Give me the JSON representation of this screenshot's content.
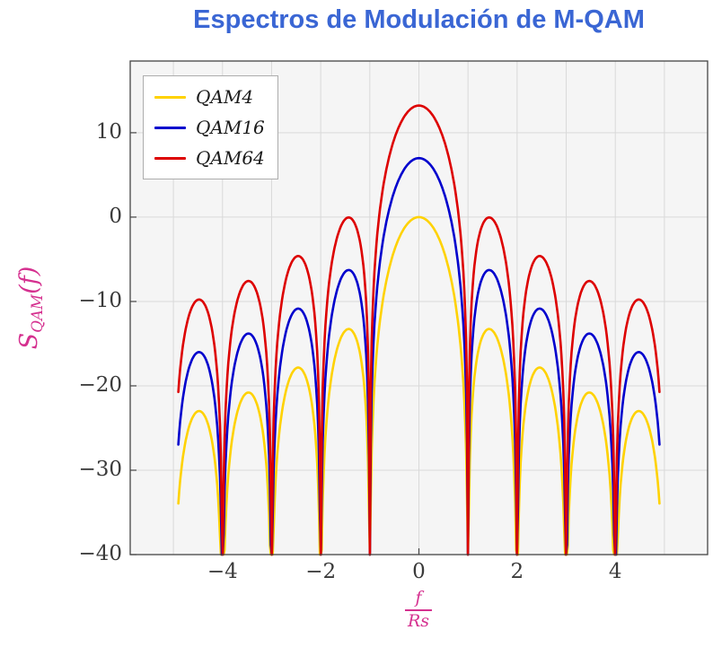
{
  "style": {
    "title_color": "#3A66D4",
    "label_color": "#D5308F",
    "axis_color": "#444444",
    "grid_color": "#D9D9D9",
    "plot_bg": "#F5F5F5",
    "tick_color": "#3A3A3A"
  },
  "labels": {
    "ylabel_base": "S",
    "ylabel_sub": "QAM",
    "ylabel_paren": "(f)",
    "xlabel_num": "f",
    "xlabel_den": "Rs"
  },
  "chart_data": {
    "type": "line",
    "title": "Espectros de Modulación de M-QAM",
    "xlabel": "f/Rs",
    "ylabel": "S_QAM(f)",
    "xlim": [
      -5.88,
      5.88
    ],
    "ylim": [
      -40,
      18.5
    ],
    "x_ticks": [
      -4,
      -2,
      0,
      2,
      4
    ],
    "x_tick_labels": [
      "−4",
      "−2",
      "0",
      "2",
      "4"
    ],
    "y_ticks": [
      10,
      0,
      -10,
      -20,
      -30,
      -40
    ],
    "y_tick_labels": [
      "10",
      "0",
      "−10",
      "−20",
      "−30",
      "−40"
    ],
    "grid": true,
    "grid_x_step": 1,
    "grid_y_step": 10,
    "legend_position": "top-left",
    "x_range": [
      -4.9,
      4.9
    ],
    "clip_floor_db": -40,
    "function": "S_M(f) = offset_db(M) + 20*log10(|sinc(f/Rs)|); sinc nulls at integer f/Rs; curves clipped at -40 dB",
    "nulls_at": [
      -4,
      -3,
      -2,
      -1,
      1,
      2,
      3,
      4
    ],
    "sidelobe_peak_positions": [
      1.43,
      2.46,
      3.47,
      4.48
    ],
    "series": [
      {
        "name": "QAM4",
        "color": "#FFD200",
        "offset_db": 0,
        "peak_db_at_0": 0,
        "sidelobe_peaks_db": [
          -13.3,
          -17.8,
          -20.8,
          -23.0
        ]
      },
      {
        "name": "QAM16",
        "color": "#0000CD",
        "offset_db": 6.99,
        "peak_db_at_0": 7,
        "sidelobe_peaks_db": [
          -6.3,
          -10.8,
          -13.8,
          -16.0
        ]
      },
      {
        "name": "QAM64",
        "color": "#DD0000",
        "offset_db": 13.22,
        "peak_db_at_0": 13.2,
        "sidelobe_peaks_db": [
          -0.1,
          -4.6,
          -7.6,
          -9.8
        ]
      }
    ]
  }
}
